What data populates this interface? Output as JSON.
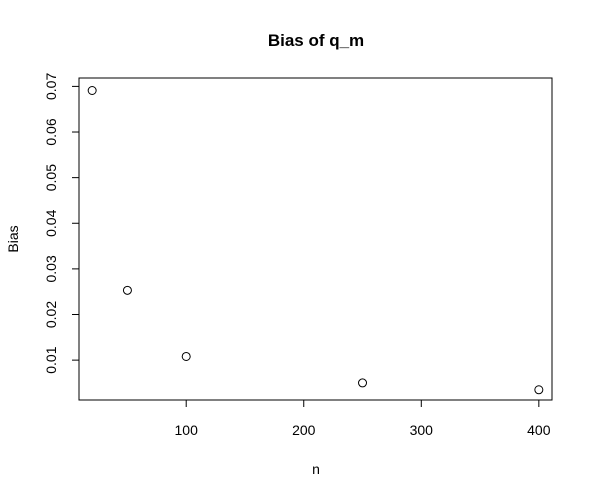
{
  "chart_data": {
    "type": "scatter",
    "title": "Bias of q_m",
    "xlabel": "n",
    "ylabel": "Bias",
    "x": [
      20,
      50,
      100,
      250,
      400
    ],
    "y": [
      0.0691,
      0.0253,
      0.0108,
      0.005,
      0.0035
    ],
    "xlim": [
      8.8,
      411.2
    ],
    "ylim": [
      0.00126,
      0.07184
    ],
    "x_ticks": [
      100,
      200,
      300,
      400
    ],
    "x_tick_labels": [
      "100",
      "200",
      "300",
      "400"
    ],
    "y_ticks": [
      0.01,
      0.02,
      0.03,
      0.04,
      0.05,
      0.06,
      0.07
    ],
    "y_tick_labels": [
      "0.01",
      "0.02",
      "0.03",
      "0.04",
      "0.05",
      "0.06",
      "0.07"
    ],
    "marker": "open-circle",
    "grid": false,
    "colors": {
      "marker": "#000000",
      "axis": "#000000",
      "background": "#ffffff"
    }
  }
}
